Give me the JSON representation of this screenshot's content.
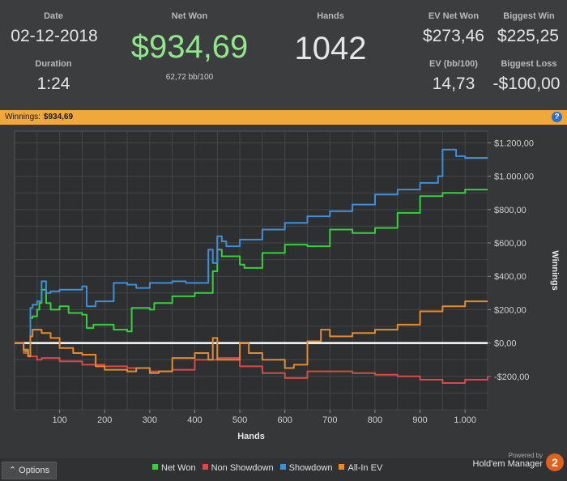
{
  "stats": {
    "date_label": "Date",
    "date_value": "02-12-2018",
    "duration_label": "Duration",
    "duration_value": "1:24",
    "netwon_label": "Net Won",
    "netwon_value": "$934,69",
    "bb_value": "62,72 bb/100",
    "hands_label": "Hands",
    "hands_value": "1042",
    "evnet_label": "EV Net Won",
    "evnet_value": "$273,46",
    "evbb_label": "EV (bb/100)",
    "evbb_value": "14,73",
    "bigwin_label": "Biggest Win",
    "bigwin_value": "$225,25",
    "bigloss_label": "Biggest Loss",
    "bigloss_value": "-$100,00"
  },
  "winnings_bar": {
    "label": "Winnings:",
    "value": "$934,69",
    "help": "?"
  },
  "footer": {
    "options_label": "Options",
    "options_icon": "caret-up",
    "powered_by": "Powered by",
    "brand": "Hold'em Manager",
    "brand_badge": "2"
  },
  "colors": {
    "net_won": "#36d03a",
    "non_showdown": "#d84a48",
    "showdown": "#3f8fd8",
    "all_in_ev": "#e58a2e",
    "highlight": "#f0a83a",
    "netwon_text": "#8fe88a"
  },
  "chart_data": {
    "type": "line",
    "xlabel": "Hands",
    "ylabel": "Winnings",
    "xlim": [
      0,
      1050
    ],
    "ylim": [
      -400,
      1270
    ],
    "x_ticks": [
      100,
      200,
      300,
      400,
      500,
      600,
      700,
      800,
      900,
      1000
    ],
    "x_tick_labels": [
      "100",
      "200",
      "300",
      "400",
      "500",
      "600",
      "700",
      "800",
      "900",
      "1.000"
    ],
    "y_ticks": [
      -200,
      0,
      200,
      400,
      600,
      800,
      1000,
      1200
    ],
    "y_tick_labels": [
      "-$200,00",
      "$0,00",
      "$200,00",
      "$400,00",
      "$600,00",
      "$800,00",
      "$1.000,00",
      "$1.200,00"
    ],
    "grid": true,
    "legend_position": "bottom",
    "series": [
      {
        "name": "Net Won",
        "color": "#36d03a",
        "x": [
          0,
          20,
          30,
          35,
          40,
          50,
          55,
          60,
          70,
          80,
          100,
          120,
          150,
          160,
          175,
          220,
          250,
          260,
          300,
          310,
          350,
          400,
          430,
          440,
          450,
          460,
          500,
          510,
          550,
          600,
          650,
          700,
          750,
          800,
          850,
          900,
          950,
          1000,
          1050
        ],
        "y": [
          0,
          -50,
          -80,
          150,
          160,
          200,
          240,
          320,
          240,
          200,
          220,
          180,
          170,
          90,
          110,
          80,
          70,
          210,
          200,
          240,
          280,
          300,
          300,
          430,
          560,
          520,
          470,
          450,
          540,
          590,
          580,
          680,
          660,
          690,
          780,
          880,
          900,
          920,
          920
        ]
      },
      {
        "name": "Non Showdown",
        "color": "#d84a48",
        "x": [
          0,
          20,
          30,
          35,
          50,
          60,
          100,
          150,
          200,
          250,
          300,
          350,
          400,
          450,
          500,
          550,
          600,
          650,
          700,
          750,
          800,
          850,
          900,
          950,
          1000,
          1050
        ],
        "y": [
          0,
          -60,
          -80,
          -80,
          -100,
          -90,
          -110,
          -130,
          -140,
          -150,
          -170,
          -160,
          -100,
          -90,
          -140,
          -180,
          -210,
          -170,
          -170,
          -180,
          -190,
          -200,
          -220,
          -240,
          -220,
          -200
        ]
      },
      {
        "name": "Showdown",
        "color": "#3f8fd8",
        "x": [
          0,
          20,
          30,
          35,
          40,
          50,
          60,
          70,
          80,
          100,
          150,
          160,
          180,
          220,
          250,
          270,
          300,
          350,
          380,
          430,
          440,
          450,
          460,
          470,
          500,
          550,
          600,
          650,
          700,
          750,
          800,
          850,
          900,
          940,
          950,
          980,
          1000,
          1050
        ],
        "y": [
          0,
          -40,
          -80,
          210,
          230,
          250,
          370,
          300,
          310,
          320,
          340,
          220,
          250,
          360,
          350,
          330,
          360,
          370,
          360,
          560,
          480,
          640,
          610,
          580,
          620,
          680,
          720,
          760,
          790,
          830,
          890,
          920,
          960,
          1000,
          1160,
          1120,
          1110,
          1110
        ]
      },
      {
        "name": "All-In EV",
        "color": "#e58a2e",
        "x": [
          0,
          20,
          30,
          35,
          40,
          60,
          80,
          100,
          130,
          150,
          180,
          200,
          250,
          270,
          300,
          320,
          350,
          400,
          430,
          440,
          450,
          480,
          500,
          520,
          550,
          600,
          620,
          650,
          680,
          700,
          750,
          800,
          850,
          900,
          950,
          1000,
          1050
        ],
        "y": [
          0,
          -40,
          -80,
          40,
          80,
          60,
          30,
          -30,
          -60,
          -70,
          -140,
          -160,
          -170,
          -150,
          -180,
          -170,
          -90,
          -60,
          -100,
          30,
          -100,
          -100,
          0,
          -60,
          -100,
          -150,
          -130,
          10,
          80,
          40,
          60,
          80,
          110,
          190,
          220,
          250,
          250
        ]
      }
    ]
  }
}
